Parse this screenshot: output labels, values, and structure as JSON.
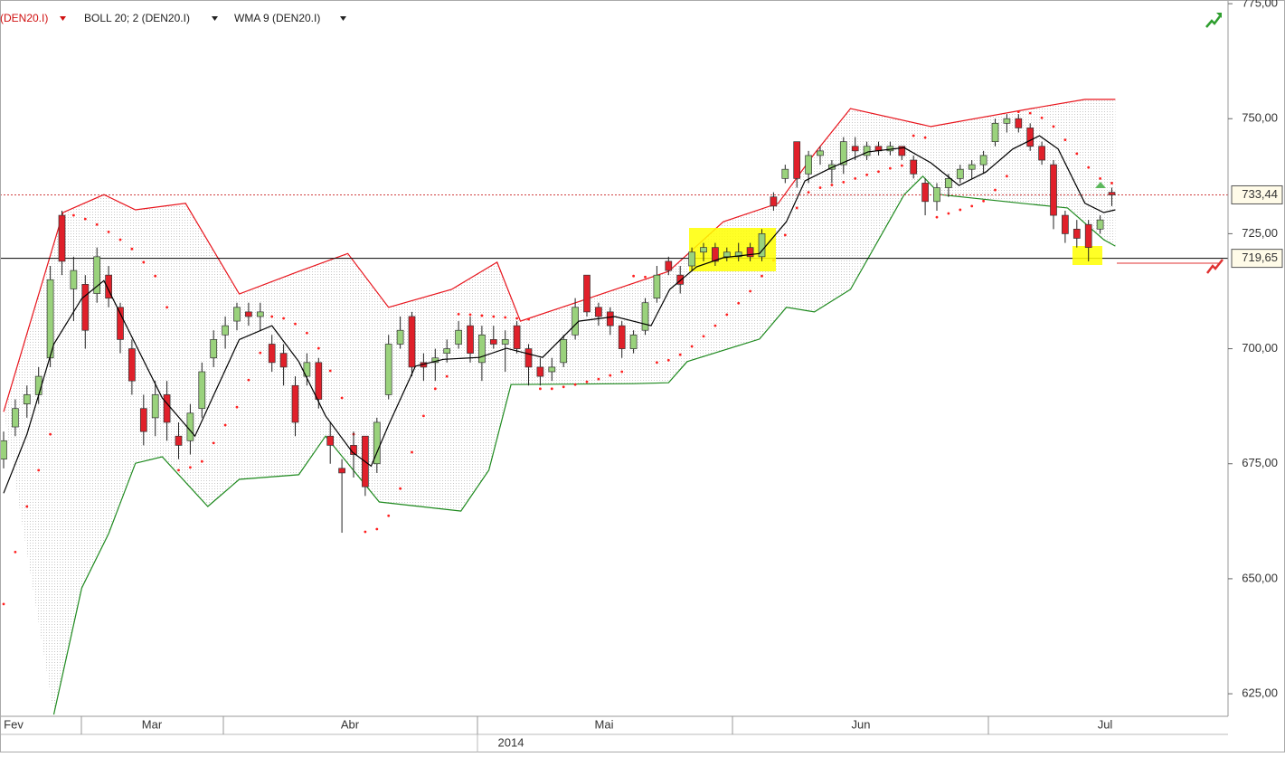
{
  "chart_data": {
    "type": "candlestick",
    "legend": [
      "(DEN20.I)",
      "BOLL 20; 2 (DEN20.I)",
      "WMA 9 (DEN20.I)"
    ],
    "months": [
      "Fev",
      "Mar",
      "Abr",
      "Mai",
      "Jun",
      "Jul"
    ],
    "year": "2014",
    "ylim": [
      620.1,
      775.8
    ],
    "yticks": [
      {
        "value": 625,
        "label": "625,00"
      },
      {
        "value": 650,
        "label": "650,00"
      },
      {
        "value": 675,
        "label": "675,00"
      },
      {
        "value": 700,
        "label": "700,00"
      },
      {
        "value": 725,
        "label": "725,00"
      },
      {
        "value": 750,
        "label": "750,00"
      },
      {
        "value": 775,
        "label": "775,00"
      }
    ],
    "up_color": "#9ad27c",
    "down_color": "#e0202a",
    "upper_band_color": "#e8141c",
    "lower_band_color": "#1f8a1f",
    "wma_color": "#000000",
    "sar_color": "#ff2020",
    "price_lines": [
      {
        "value": 733.44,
        "label": "733,44",
        "color": "#d04040",
        "dashed": true
      },
      {
        "value": 719.65,
        "label": "719,65",
        "color": "#000000",
        "dashed": false
      }
    ],
    "ohlc": [
      [
        676,
        682,
        674,
        680
      ],
      [
        683,
        689,
        681,
        687
      ],
      [
        688,
        692,
        685,
        690
      ],
      [
        690,
        696,
        688,
        694
      ],
      [
        698,
        718,
        696,
        715
      ],
      [
        729,
        730,
        716,
        719
      ],
      [
        713,
        720,
        706,
        717
      ],
      [
        714,
        716,
        700,
        704
      ],
      [
        712,
        722,
        710,
        720
      ],
      [
        716,
        718,
        709,
        711
      ],
      [
        709,
        710,
        699,
        702
      ],
      [
        700,
        702,
        690,
        693
      ],
      [
        687,
        690,
        679,
        682
      ],
      [
        685,
        693,
        681,
        690
      ],
      [
        690,
        693,
        680,
        684
      ],
      [
        681,
        684,
        676,
        679
      ],
      [
        680,
        688,
        677,
        686
      ],
      [
        687,
        697,
        685,
        695
      ],
      [
        698,
        704,
        696,
        702
      ],
      [
        703,
        707,
        700,
        705
      ],
      [
        706,
        710,
        704,
        709
      ],
      [
        708,
        710,
        705,
        707
      ],
      [
        707,
        710,
        704,
        708
      ],
      [
        701,
        703,
        695,
        697
      ],
      [
        699,
        701,
        692,
        696
      ],
      [
        692,
        694,
        681,
        684
      ],
      [
        694,
        699,
        692,
        697
      ],
      [
        697,
        698,
        687,
        689
      ],
      [
        681,
        684,
        675,
        679
      ],
      [
        674,
        676,
        660,
        673
      ],
      [
        679,
        682,
        672,
        677
      ],
      [
        681,
        681,
        668,
        670
      ],
      [
        675,
        685,
        673,
        684
      ],
      [
        690,
        703,
        689,
        701
      ],
      [
        701,
        707,
        700,
        704
      ],
      [
        707,
        708,
        694,
        696
      ],
      [
        697,
        699,
        693,
        696
      ],
      [
        697,
        700,
        693,
        698
      ],
      [
        699,
        702,
        697,
        700
      ],
      [
        701,
        706,
        700,
        704
      ],
      [
        705,
        707,
        697,
        699
      ],
      [
        697,
        705,
        693,
        703
      ],
      [
        702,
        705,
        700,
        701
      ],
      [
        701,
        704,
        695,
        702
      ],
      [
        705,
        706,
        699,
        700
      ],
      [
        700,
        701,
        692,
        696
      ],
      [
        696,
        698,
        692,
        694
      ],
      [
        695,
        698,
        693,
        696
      ],
      [
        697,
        703,
        696,
        702
      ],
      [
        703,
        711,
        702,
        709
      ],
      [
        716,
        716,
        707,
        708
      ],
      [
        709,
        710,
        705,
        707
      ],
      [
        708,
        709,
        703,
        705
      ],
      [
        705,
        706,
        698,
        700
      ],
      [
        700,
        704,
        699,
        703
      ],
      [
        704,
        711,
        703,
        710
      ],
      [
        711,
        718,
        710,
        716
      ],
      [
        719,
        720,
        716,
        717
      ],
      [
        716,
        718,
        712,
        714
      ],
      [
        718,
        722,
        717,
        721
      ],
      [
        721,
        723,
        719,
        722
      ],
      [
        722,
        723,
        718,
        719
      ],
      [
        720,
        722,
        719,
        721
      ],
      [
        720,
        723,
        719,
        721
      ],
      [
        722,
        723,
        719,
        720
      ],
      [
        720,
        726,
        719,
        725
      ],
      [
        733,
        734,
        730,
        731
      ],
      [
        737,
        740,
        736,
        739
      ],
      [
        745,
        745,
        735,
        737
      ],
      [
        738,
        743,
        736,
        742
      ],
      [
        742,
        744,
        740,
        743
      ],
      [
        739,
        741,
        736,
        740
      ],
      [
        740,
        746,
        738,
        745
      ],
      [
        744,
        746,
        741,
        743
      ],
      [
        742,
        745,
        741,
        744
      ],
      [
        744,
        745,
        742,
        743
      ],
      [
        743,
        745,
        742,
        744
      ],
      [
        744,
        744,
        741,
        742
      ],
      [
        741,
        742,
        737,
        738
      ],
      [
        736,
        737,
        729,
        732
      ],
      [
        732,
        736,
        730,
        735
      ],
      [
        735,
        738,
        733,
        737
      ],
      [
        737,
        740,
        736,
        739
      ],
      [
        739,
        741,
        737,
        740
      ],
      [
        740,
        743,
        738,
        742
      ],
      [
        745,
        750,
        744,
        749
      ],
      [
        749,
        751,
        747,
        750
      ],
      [
        750,
        751,
        747,
        748
      ],
      [
        748,
        749,
        743,
        744
      ],
      [
        744,
        745,
        740,
        741
      ],
      [
        740,
        741,
        726,
        729
      ],
      [
        729,
        730,
        723,
        725
      ],
      [
        726,
        728,
        722,
        724
      ],
      [
        727,
        728,
        719,
        722
      ],
      [
        726,
        729,
        725,
        728
      ],
      [
        734,
        735,
        731,
        733.44
      ]
    ],
    "sar": [
      644.5,
      655.8,
      665.7,
      673.6,
      681.4,
      null,
      729,
      728.2,
      727,
      725.4,
      723.7,
      721.7,
      718.8,
      715.8,
      709,
      673.6,
      674.2,
      675.5,
      679.5,
      683.4,
      687.3,
      693.2,
      699.1,
      707,
      706.6,
      705.4,
      703.4,
      700.1,
      695.2,
      689.3,
      681.4,
      660.2,
      660.8,
      663.7,
      669.6,
      677.5,
      685.4,
      691.3,
      694,
      707.5,
      707.4,
      707.2,
      707,
      706.8,
      706.6,
      706.4,
      691.3,
      691.3,
      691.7,
      692.2,
      692.8,
      693.4,
      694.2,
      695,
      715.8,
      715.6,
      697,
      697.5,
      698.7,
      700.5,
      702.7,
      705,
      707.4,
      709.9,
      712.5,
      715.8,
      719.2,
      724.7,
      730.6,
      734,
      735,
      735.6,
      736.2,
      737,
      737.8,
      738.5,
      739.2,
      739.8,
      746.3,
      745.9,
      728.6,
      729.4,
      730.2,
      731,
      732.1,
      734.5,
      737.5,
      751.5,
      751.2,
      750.2,
      748.3,
      745.4,
      742.4,
      739.4,
      737,
      736
    ],
    "bollinger": {
      "upper": {
        "x": [
          0,
          5.1,
          8.6,
          11.3,
          15.6,
          20.2,
          25.3,
          29.5,
          33,
          38.4,
          42.3,
          44.3,
          50.1,
          57,
          61.7,
          66.4,
          69.5,
          72.6,
          79.5,
          88.1,
          92.7,
          95.3
        ],
        "values": [
          686.3,
          729.6,
          733.5,
          730.2,
          731.6,
          711.9,
          716.8,
          720.7,
          709,
          712.9,
          718.8,
          706,
          710.9,
          716.8,
          727.6,
          731.6,
          742.4,
          752.2,
          748.3,
          752.2,
          754.2,
          754.2
        ]
      },
      "lower": {
        "x": [
          4.3,
          6.7,
          9,
          11.3,
          13.6,
          17.5,
          20.2,
          25.3,
          27.6,
          32.2,
          39.2,
          41.6,
          43.5,
          54,
          57,
          58.6,
          64.8,
          67.1,
          69.5,
          72.6,
          77.2,
          78.8,
          80.3,
          87.3,
          91.2,
          94.3,
          95.3
        ],
        "values": [
          620.5,
          648,
          659.8,
          675.1,
          676.5,
          665.7,
          671.6,
          672.6,
          681,
          666.7,
          664.7,
          673.6,
          692.2,
          692.4,
          692.6,
          697.2,
          702.1,
          709,
          708,
          712.9,
          733.5,
          737.5,
          733.5,
          731.6,
          730.6,
          723.7,
          722.3
        ]
      }
    },
    "wma": {
      "x": [
        0,
        2,
        4.3,
        6.7,
        8.6,
        11.3,
        13.6,
        16.4,
        17.9,
        20.2,
        23,
        25.3,
        27.6,
        29.9,
        31.5,
        33,
        35.3,
        37.7,
        40.8,
        43.1,
        46.2,
        49.3,
        52.4,
        55.5,
        57.1,
        59.4,
        61.7,
        64.8,
        67.1,
        68.7,
        71,
        74.1,
        77.2,
        79.5,
        81.9,
        84.2,
        86.5,
        88.8,
        90.4,
        92.7,
        94.3,
        95.3
      ],
      "values": [
        668.6,
        681.4,
        701,
        710.9,
        714.8,
        701,
        689.3,
        681,
        689.3,
        702,
        705,
        697.2,
        685.4,
        677.5,
        674.5,
        683.4,
        696.2,
        697.7,
        698.1,
        700.1,
        698.1,
        706,
        707,
        705,
        712.9,
        717.8,
        719.8,
        720.7,
        727.6,
        736.5,
        739.4,
        742.8,
        743.7,
        740.4,
        735.5,
        738.4,
        743.4,
        746.3,
        743.4,
        731.6,
        729.6,
        730.2
      ]
    }
  }
}
